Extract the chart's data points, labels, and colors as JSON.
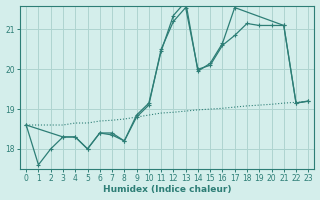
{
  "xlabel": "Humidex (Indice chaleur)",
  "background_color": "#d4eeeb",
  "grid_color": "#aed4d0",
  "line_color": "#2d7e76",
  "xlim": [
    -0.5,
    23.5
  ],
  "ylim": [
    17.5,
    21.6
  ],
  "yticks": [
    18,
    19,
    20,
    21
  ],
  "xticks": [
    0,
    1,
    2,
    3,
    4,
    5,
    6,
    7,
    8,
    9,
    10,
    11,
    12,
    13,
    14,
    15,
    16,
    17,
    18,
    19,
    20,
    21,
    22,
    23
  ],
  "dot_x": [
    0,
    1,
    2,
    3,
    4,
    5,
    6,
    7,
    8,
    9,
    10,
    11,
    12,
    13,
    14,
    15,
    16,
    17,
    18,
    19,
    20,
    21,
    22,
    23
  ],
  "dot_y": [
    18.6,
    18.6,
    18.6,
    18.6,
    18.65,
    18.65,
    18.7,
    18.72,
    18.75,
    18.8,
    18.85,
    18.9,
    18.92,
    18.95,
    18.98,
    19.0,
    19.02,
    19.05,
    19.08,
    19.1,
    19.12,
    19.15,
    19.17,
    19.2
  ],
  "line2_x": [
    0,
    1,
    2,
    3,
    4,
    5,
    6,
    7,
    8,
    9,
    10,
    11,
    12,
    13,
    14,
    15,
    16,
    17,
    18,
    19,
    20,
    21,
    22,
    23
  ],
  "line2_y": [
    18.6,
    17.6,
    18.0,
    18.3,
    18.3,
    18.0,
    18.4,
    18.4,
    18.2,
    18.8,
    19.1,
    20.5,
    21.2,
    21.55,
    20.0,
    20.1,
    20.6,
    20.85,
    21.15,
    21.1,
    21.1,
    21.1,
    19.15,
    19.2
  ],
  "line3_x": [
    0,
    3,
    4,
    5,
    6,
    7,
    8,
    9,
    10,
    11,
    12,
    13,
    14,
    15,
    16,
    17,
    21,
    22,
    23
  ],
  "line3_y": [
    18.6,
    18.3,
    18.3,
    18.0,
    18.4,
    18.35,
    18.2,
    18.85,
    19.15,
    20.45,
    21.35,
    21.7,
    19.95,
    20.15,
    20.65,
    21.55,
    21.1,
    19.15,
    19.2
  ]
}
